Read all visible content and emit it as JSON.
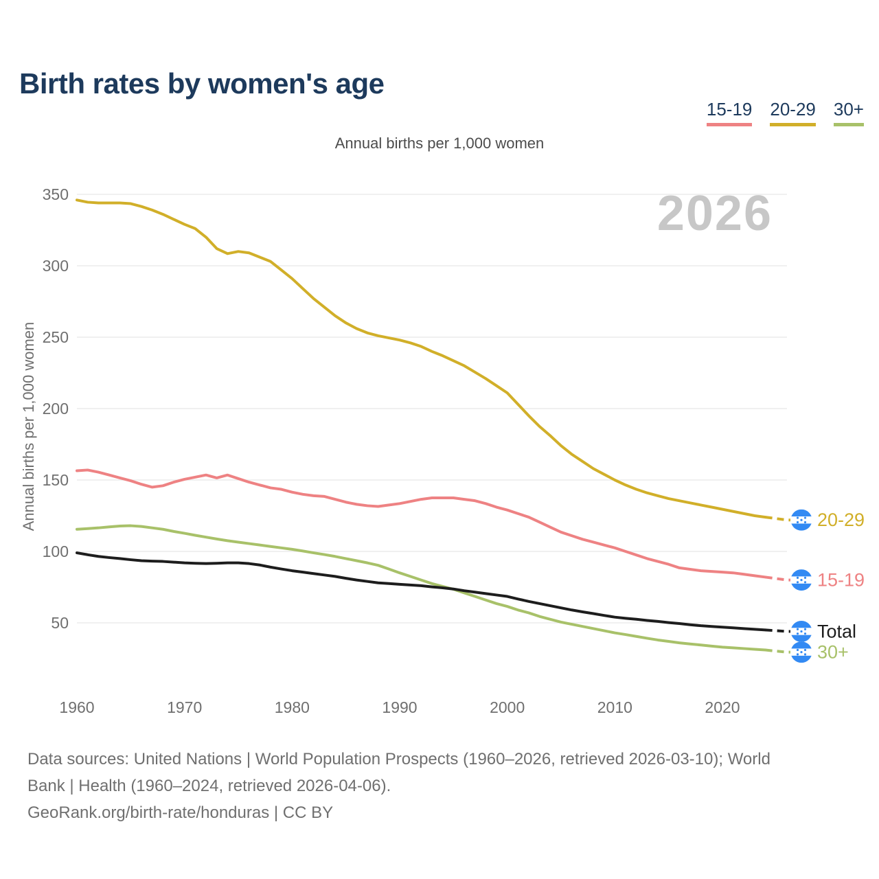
{
  "title": "Birth rates by women's age",
  "subtitle": "Annual births per 1,000 women",
  "watermark": "2026",
  "legend": {
    "items": [
      {
        "label": "15-19",
        "color": "#ee8283"
      },
      {
        "label": "20-29",
        "color": "#d1af29"
      },
      {
        "label": "30+",
        "color": "#a8c169"
      }
    ]
  },
  "footer": {
    "lines": [
      "Data sources: United Nations | World Population Prospects (1960–2026, retrieved 2026-03-10); World",
      "Bank | Health (1960–2024, retrieved 2026-04-06).",
      "GeoRank.org/birth-rate/honduras | CC BY"
    ]
  },
  "chart_data": {
    "type": "line",
    "title": "Birth rates by women's age",
    "ylabel": "Annual births per 1,000 women",
    "grid": "horizontal",
    "legend_position": "top-right",
    "watermark": "2026",
    "end_marker_icon": "honduras-flag",
    "flag_blue": "#338af3",
    "projection_start_year": 2024,
    "x_ticks": [
      1960,
      1970,
      1980,
      1990,
      2000,
      2010,
      2020
    ],
    "y_ticks": [
      50,
      100,
      150,
      200,
      250,
      300,
      350
    ],
    "ylim": [
      20,
      360
    ],
    "x": [
      1960,
      1961,
      1962,
      1963,
      1964,
      1965,
      1966,
      1967,
      1968,
      1969,
      1970,
      1971,
      1972,
      1973,
      1974,
      1975,
      1976,
      1977,
      1978,
      1979,
      1980,
      1981,
      1982,
      1983,
      1984,
      1985,
      1986,
      1987,
      1988,
      1989,
      1990,
      1991,
      1992,
      1993,
      1994,
      1995,
      1996,
      1997,
      1998,
      1999,
      2000,
      2001,
      2002,
      2003,
      2004,
      2005,
      2006,
      2007,
      2008,
      2009,
      2010,
      2011,
      2012,
      2013,
      2014,
      2015,
      2016,
      2017,
      2018,
      2019,
      2020,
      2021,
      2022,
      2023,
      2024,
      2025,
      2026
    ],
    "series": [
      {
        "name": "20-29",
        "end_label": "20-29",
        "color": "#d1af29",
        "values": [
          346,
          344.5,
          344,
          344,
          344,
          343.5,
          341.5,
          339,
          336,
          332.5,
          329,
          326,
          320,
          312,
          308.5,
          310,
          309,
          306,
          303,
          297,
          291,
          284,
          277,
          271,
          265,
          260,
          256,
          253,
          251,
          249.5,
          248,
          246,
          243.5,
          240,
          237,
          233.5,
          230,
          225.5,
          221,
          216,
          211,
          203,
          195,
          187.5,
          181,
          174,
          168,
          163,
          158,
          154,
          150,
          146.5,
          143.5,
          141,
          139,
          137,
          135.5,
          134,
          132.5,
          131,
          129.5,
          128,
          126.5,
          125,
          124,
          123,
          122
        ]
      },
      {
        "name": "15-19",
        "end_label": "15-19",
        "color": "#ee8283",
        "values": [
          156.5,
          157,
          155.5,
          153.5,
          151.5,
          149.5,
          147,
          145,
          146,
          148.5,
          150.5,
          152,
          153.5,
          151.5,
          153.5,
          151,
          148.5,
          146.5,
          144.5,
          143.5,
          141.5,
          140,
          139,
          138.5,
          136.5,
          134.5,
          133,
          132,
          131.5,
          132.5,
          133.5,
          135,
          136.5,
          137.5,
          137.5,
          137.5,
          136.5,
          135.5,
          133.5,
          131,
          129,
          126.5,
          124,
          120.5,
          117,
          113.5,
          111,
          108.5,
          106.5,
          104.5,
          102.5,
          100,
          97.5,
          95,
          93,
          91,
          88.5,
          87.5,
          86.5,
          86,
          85.5,
          85,
          84,
          83,
          82,
          81,
          80
        ]
      },
      {
        "name": "30+",
        "end_label": "30+",
        "color": "#a8c169",
        "values": [
          115.5,
          116,
          116.5,
          117.2,
          117.8,
          118,
          117.5,
          116.5,
          115.5,
          114,
          112.7,
          111.3,
          110,
          108.7,
          107.5,
          106.5,
          105.5,
          104.5,
          103.5,
          102.5,
          101.5,
          100.3,
          99,
          97.8,
          96.5,
          95,
          93.5,
          92,
          90.3,
          87.7,
          85,
          82.5,
          80,
          77.5,
          75.5,
          73.5,
          71,
          68.5,
          66,
          63.5,
          61.5,
          59,
          57,
          54.5,
          52.5,
          50.5,
          49,
          47.5,
          46,
          44.5,
          43,
          41.8,
          40.5,
          39.2,
          38,
          37,
          36,
          35.2,
          34.5,
          33.7,
          33,
          32.5,
          32,
          31.5,
          31,
          30.2,
          29.5
        ]
      },
      {
        "name": "Total",
        "end_label": "Total",
        "color": "#1d1d1d",
        "values": [
          99,
          97.7,
          96.5,
          95.7,
          95,
          94.2,
          93.5,
          93.2,
          93,
          92.5,
          92,
          91.7,
          91.5,
          91.7,
          92,
          92,
          91.5,
          90.5,
          89,
          87.7,
          86.5,
          85.5,
          84.5,
          83.5,
          82.5,
          81.2,
          80,
          79,
          78,
          77.5,
          77,
          76.5,
          76,
          75.2,
          74.5,
          73.7,
          72.5,
          71.5,
          70.5,
          69.5,
          68.5,
          66.7,
          65,
          63.5,
          62,
          60.5,
          59,
          57.7,
          56.5,
          55.2,
          54,
          53.2,
          52.5,
          51.7,
          51,
          50.2,
          49.5,
          48.7,
          48,
          47.5,
          47,
          46.5,
          46,
          45.5,
          45,
          44.5,
          44
        ]
      }
    ]
  }
}
